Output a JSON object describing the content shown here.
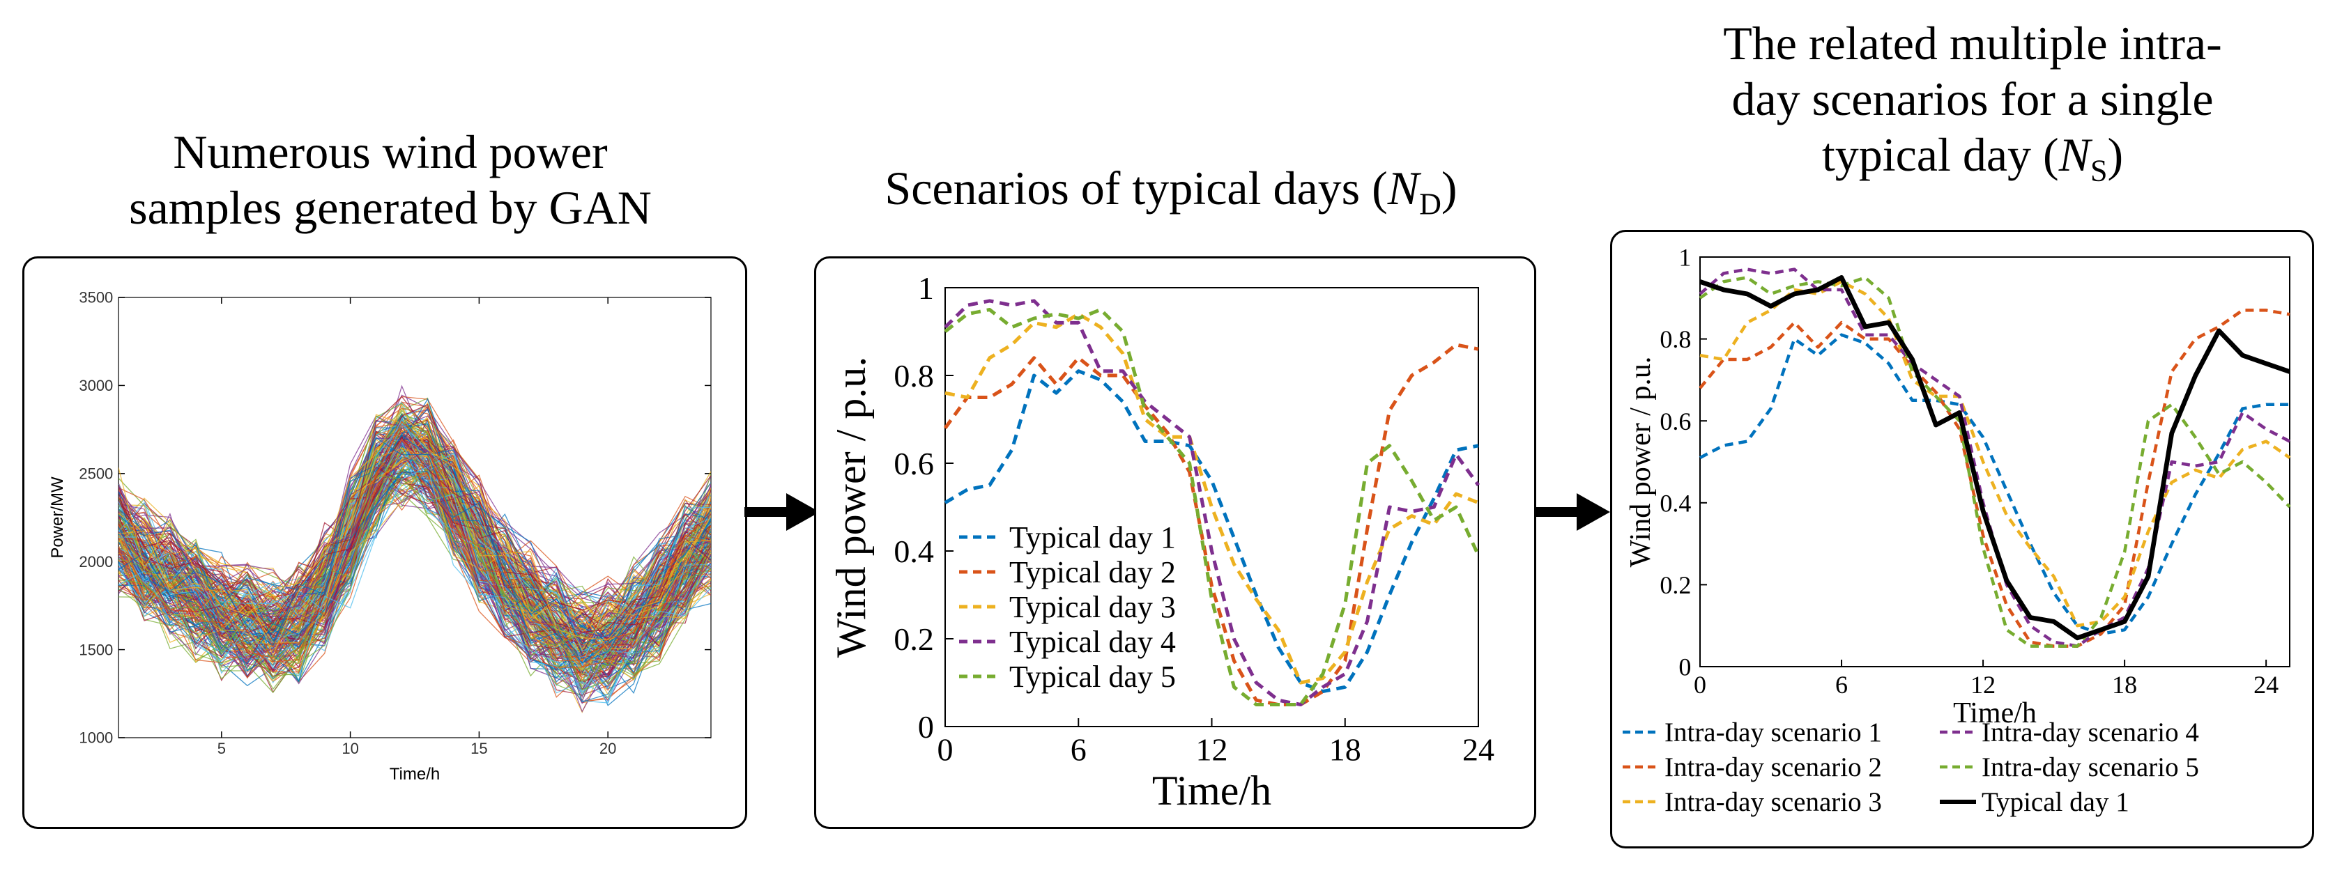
{
  "titles": {
    "left": [
      "Numerous wind power",
      "samples generated by GAN"
    ],
    "middle": {
      "main": "Scenarios of typical days (",
      "var": "N",
      "sub": "D",
      "close": ")"
    },
    "right": {
      "line1": "The related multiple intra-",
      "line2": "day scenarios for a single",
      "line3a": "typical day (",
      "var": "N",
      "sub": "S",
      "close": ")"
    }
  },
  "colors": {
    "s1": "#0072BD",
    "s2": "#D95319",
    "s3": "#EDB120",
    "s4": "#7E2F8E",
    "s5": "#77AC30",
    "typical": "#000000"
  },
  "icons": [
    "arrow-right-icon"
  ],
  "chart_data": [
    {
      "type": "line",
      "title": "Numerous wind power samples generated by GAN",
      "xlabel": "Time/h",
      "ylabel": "Power/MW",
      "xlim": [
        1,
        24
      ],
      "ylim": [
        1000,
        3500
      ],
      "xticks": [
        5,
        10,
        15,
        20
      ],
      "yticks": [
        1000,
        1500,
        2000,
        2500,
        3000,
        3500
      ],
      "mean_profile": [
        2150,
        2000,
        1900,
        1800,
        1700,
        1650,
        1600,
        1650,
        1850,
        2150,
        2500,
        2650,
        2600,
        2350,
        2100,
        1900,
        1750,
        1600,
        1500,
        1550,
        1650,
        1800,
        2000,
        2150
      ],
      "spread_mw": 300,
      "note": "hundreds of overlapping sample curves"
    },
    {
      "type": "line",
      "title": "Scenarios of typical days (ND)",
      "xlabel": "Time/h",
      "ylabel": "Wind power / p.u.",
      "xlim": [
        0,
        24
      ],
      "ylim": [
        0,
        1
      ],
      "xticks": [
        0,
        6,
        12,
        18,
        24
      ],
      "yticks": [
        0,
        0.2,
        0.4,
        0.6,
        0.8,
        1
      ],
      "yticklabels": [
        "0",
        "0.2",
        "0.4",
        "0.6",
        "0.8",
        "1"
      ],
      "legend": "left-bottom",
      "x": [
        0,
        1,
        2,
        3,
        4,
        5,
        6,
        7,
        8,
        9,
        10,
        11,
        12,
        13,
        14,
        15,
        16,
        17,
        18,
        19,
        20,
        21,
        22,
        23,
        24
      ],
      "series": [
        {
          "name": "Typical day 1",
          "style": "dashed",
          "values": [
            0.51,
            0.54,
            0.55,
            0.63,
            0.8,
            0.76,
            0.81,
            0.79,
            0.74,
            0.65,
            0.65,
            0.64,
            0.56,
            0.43,
            0.3,
            0.18,
            0.1,
            0.08,
            0.09,
            0.17,
            0.3,
            0.42,
            0.52,
            0.63,
            0.64
          ]
        },
        {
          "name": "Typical day 2",
          "style": "dashed",
          "values": [
            0.68,
            0.75,
            0.75,
            0.78,
            0.84,
            0.78,
            0.84,
            0.8,
            0.8,
            0.73,
            0.67,
            0.58,
            0.32,
            0.15,
            0.06,
            0.05,
            0.05,
            0.08,
            0.15,
            0.45,
            0.72,
            0.8,
            0.83,
            0.87,
            0.86
          ]
        },
        {
          "name": "Typical day 3",
          "style": "dashed",
          "values": [
            0.76,
            0.75,
            0.84,
            0.87,
            0.92,
            0.91,
            0.94,
            0.91,
            0.85,
            0.7,
            0.66,
            0.66,
            0.5,
            0.37,
            0.29,
            0.22,
            0.1,
            0.11,
            0.17,
            0.33,
            0.45,
            0.48,
            0.46,
            0.53,
            0.51
          ]
        },
        {
          "name": "Typical day 4",
          "style": "dashed",
          "values": [
            0.91,
            0.96,
            0.97,
            0.96,
            0.97,
            0.92,
            0.92,
            0.81,
            0.81,
            0.74,
            0.7,
            0.66,
            0.4,
            0.2,
            0.1,
            0.06,
            0.05,
            0.09,
            0.12,
            0.24,
            0.5,
            0.49,
            0.5,
            0.62,
            0.55
          ]
        },
        {
          "name": "Typical day 5",
          "style": "dashed",
          "values": [
            0.9,
            0.94,
            0.95,
            0.91,
            0.93,
            0.94,
            0.93,
            0.95,
            0.9,
            0.72,
            0.66,
            0.6,
            0.29,
            0.09,
            0.05,
            0.05,
            0.05,
            0.12,
            0.28,
            0.6,
            0.64,
            0.56,
            0.47,
            0.5,
            0.39
          ]
        }
      ]
    },
    {
      "type": "line",
      "title": "The related multiple intra-day scenarios for a single typical day (NS)",
      "xlabel": "Time/h",
      "ylabel": "Wind power / p.u.",
      "xlim": [
        0,
        25
      ],
      "ylim": [
        0,
        1
      ],
      "xticks": [
        0,
        6,
        12,
        18,
        24
      ],
      "yticks": [
        0,
        0.2,
        0.4,
        0.6,
        0.8,
        1
      ],
      "yticklabels": [
        "0",
        "0.2",
        "0.4",
        "0.6",
        "0.8",
        "1"
      ],
      "legend": "below",
      "x": [
        0,
        1,
        2,
        3,
        4,
        5,
        6,
        7,
        8,
        9,
        10,
        11,
        12,
        13,
        14,
        15,
        16,
        17,
        18,
        19,
        20,
        21,
        22,
        23,
        24,
        25
      ],
      "series": [
        {
          "name": "Intra-day scenario 1",
          "style": "dashed",
          "values": [
            0.51,
            0.54,
            0.55,
            0.63,
            0.8,
            0.76,
            0.81,
            0.79,
            0.74,
            0.65,
            0.65,
            0.64,
            0.56,
            0.43,
            0.3,
            0.18,
            0.1,
            0.08,
            0.09,
            0.17,
            0.3,
            0.42,
            0.52,
            0.63,
            0.64,
            0.64
          ]
        },
        {
          "name": "Intra-day scenario 2",
          "style": "dashed",
          "values": [
            0.68,
            0.75,
            0.75,
            0.78,
            0.84,
            0.78,
            0.84,
            0.8,
            0.8,
            0.73,
            0.67,
            0.58,
            0.32,
            0.15,
            0.06,
            0.05,
            0.05,
            0.08,
            0.15,
            0.45,
            0.72,
            0.8,
            0.83,
            0.87,
            0.87,
            0.86
          ]
        },
        {
          "name": "Intra-day scenario 3",
          "style": "dashed",
          "values": [
            0.76,
            0.75,
            0.84,
            0.87,
            0.92,
            0.91,
            0.94,
            0.91,
            0.85,
            0.7,
            0.66,
            0.66,
            0.5,
            0.37,
            0.29,
            0.22,
            0.1,
            0.11,
            0.17,
            0.33,
            0.45,
            0.48,
            0.46,
            0.53,
            0.55,
            0.51
          ]
        },
        {
          "name": "Intra-day scenario 4",
          "style": "dashed",
          "values": [
            0.91,
            0.96,
            0.97,
            0.96,
            0.97,
            0.92,
            0.92,
            0.81,
            0.81,
            0.74,
            0.7,
            0.66,
            0.4,
            0.2,
            0.1,
            0.06,
            0.05,
            0.09,
            0.12,
            0.24,
            0.5,
            0.49,
            0.5,
            0.62,
            0.58,
            0.55
          ]
        },
        {
          "name": "Intra-day scenario 5",
          "style": "dashed",
          "values": [
            0.9,
            0.94,
            0.95,
            0.91,
            0.93,
            0.94,
            0.93,
            0.95,
            0.9,
            0.72,
            0.66,
            0.6,
            0.29,
            0.09,
            0.05,
            0.05,
            0.05,
            0.12,
            0.28,
            0.6,
            0.64,
            0.56,
            0.47,
            0.5,
            0.45,
            0.39
          ]
        },
        {
          "name": "Typical day 1",
          "style": "solid",
          "values": [
            0.94,
            0.92,
            0.91,
            0.88,
            0.91,
            0.92,
            0.95,
            0.83,
            0.84,
            0.75,
            0.59,
            0.62,
            0.38,
            0.21,
            0.12,
            0.11,
            0.07,
            0.09,
            0.11,
            0.22,
            0.57,
            0.71,
            0.82,
            0.76,
            0.74,
            0.72
          ]
        }
      ]
    }
  ]
}
